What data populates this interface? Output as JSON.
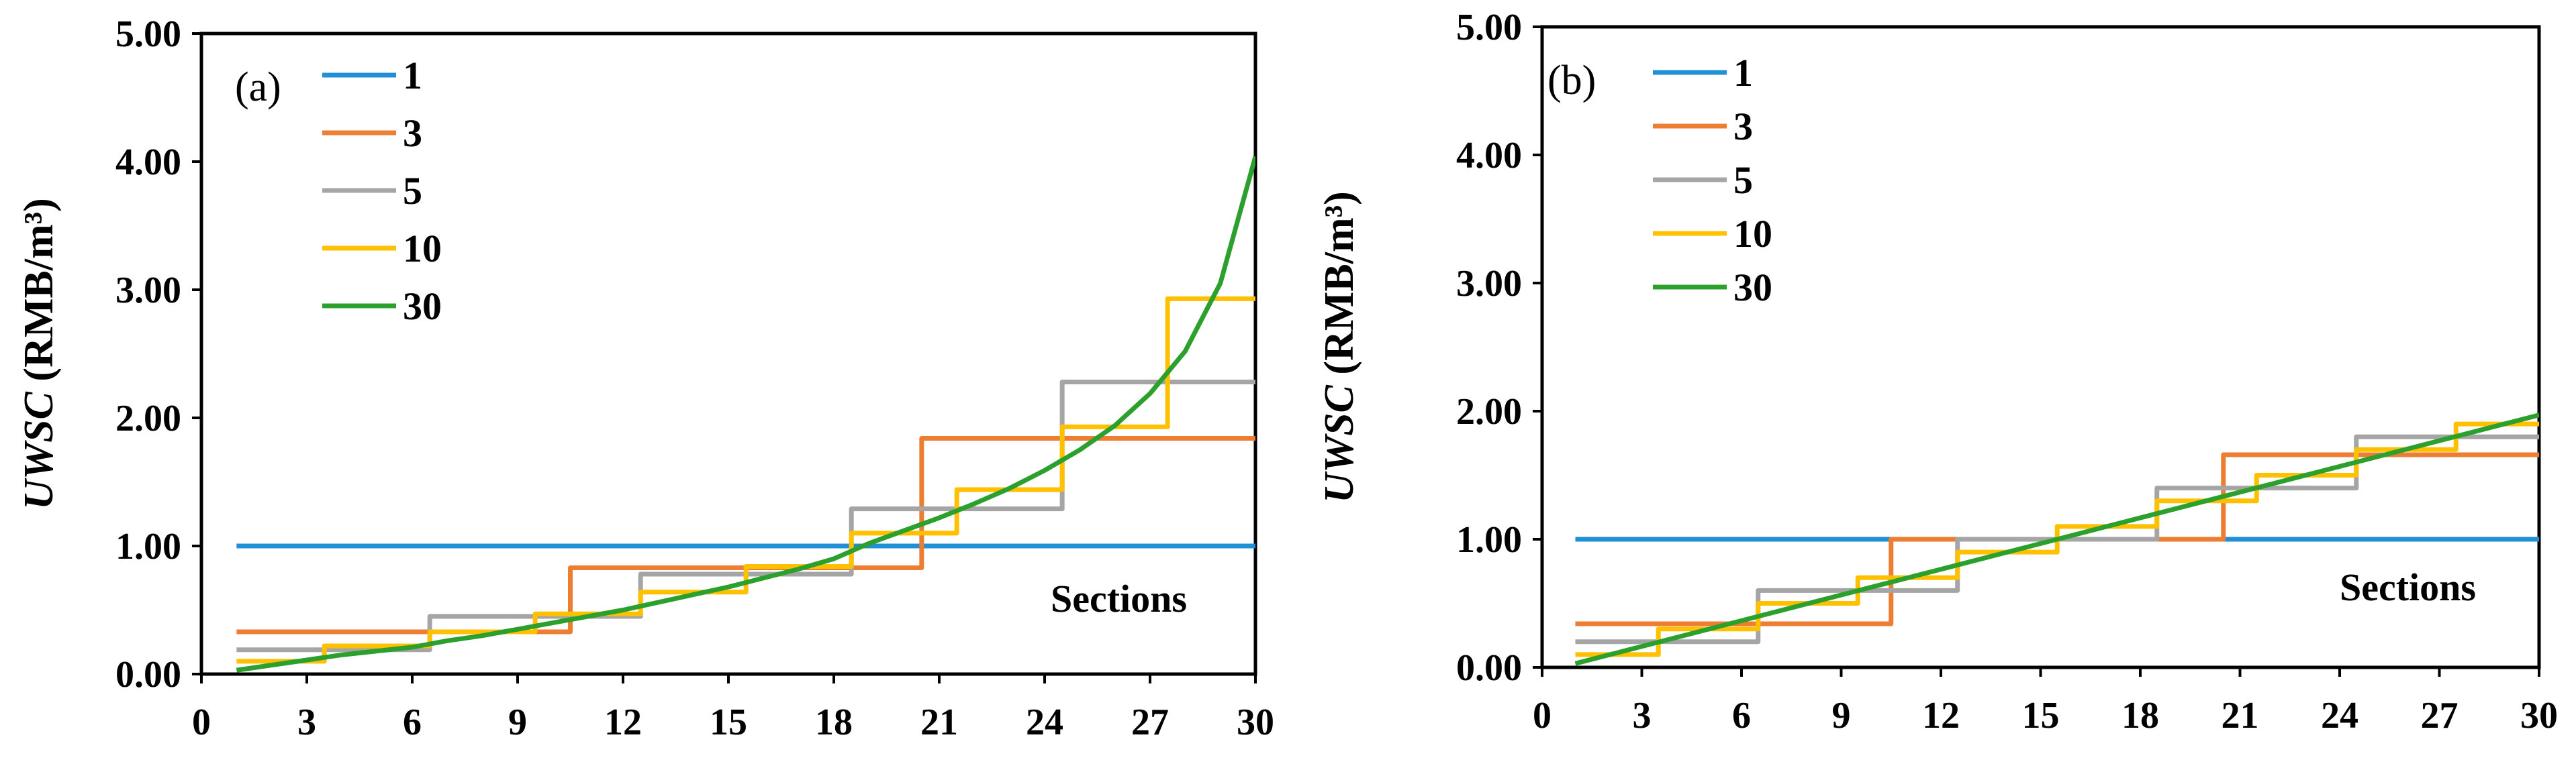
{
  "chart_data": [
    {
      "type": "line",
      "panel_label": "(a)",
      "ylabel_italic": "UWSC",
      "ylabel_unit": " (RMB/m³)",
      "xlabel": "",
      "annotation": "Sections",
      "xlim": [
        0,
        30
      ],
      "ylim": [
        0,
        5
      ],
      "xticks": [
        "0",
        "3",
        "6",
        "9",
        "12",
        "15",
        "18",
        "21",
        "24",
        "27",
        "30"
      ],
      "yticks": [
        "0.00",
        "1.00",
        "2.00",
        "3.00",
        "4.00",
        "5.00"
      ],
      "series": [
        {
          "name": "1",
          "color": "#1f8fd6",
          "step": false,
          "x": [
            1,
            30
          ],
          "y": [
            1.0,
            1.0
          ]
        },
        {
          "name": "3",
          "color": "#ed7d31",
          "step": true,
          "segments": [
            [
              1,
              10.5,
              0.33
            ],
            [
              10.5,
              20.5,
              0.83
            ],
            [
              20.5,
              30,
              1.84
            ]
          ]
        },
        {
          "name": "5",
          "color": "#a5a5a5",
          "step": true,
          "segments": [
            [
              1,
              6.5,
              0.19
            ],
            [
              6.5,
              12.5,
              0.45
            ],
            [
              12.5,
              18.5,
              0.78
            ],
            [
              18.5,
              24.5,
              1.29
            ],
            [
              24.5,
              30,
              2.28
            ]
          ]
        },
        {
          "name": "10",
          "color": "#ffc000",
          "step": true,
          "segments": [
            [
              1,
              3.5,
              0.1
            ],
            [
              3.5,
              6.5,
              0.22
            ],
            [
              6.5,
              9.5,
              0.33
            ],
            [
              9.5,
              12.5,
              0.47
            ],
            [
              12.5,
              15.5,
              0.64
            ],
            [
              15.5,
              18.5,
              0.84
            ],
            [
              18.5,
              21.5,
              1.1
            ],
            [
              21.5,
              24.5,
              1.44
            ],
            [
              24.5,
              27.5,
              1.93
            ],
            [
              27.5,
              30,
              2.93
            ]
          ]
        },
        {
          "name": "30",
          "color": "#2ca02c",
          "step": false,
          "x": [
            1,
            2,
            3,
            4,
            5,
            6,
            7,
            8,
            9,
            10,
            11,
            12,
            13,
            14,
            15,
            16,
            17,
            18,
            19,
            20,
            21,
            22,
            23,
            24,
            25,
            26,
            27,
            28,
            29,
            30
          ],
          "y": [
            0.03,
            0.07,
            0.11,
            0.15,
            0.18,
            0.21,
            0.26,
            0.3,
            0.35,
            0.4,
            0.45,
            0.5,
            0.56,
            0.62,
            0.68,
            0.75,
            0.82,
            0.9,
            1.02,
            1.12,
            1.22,
            1.33,
            1.45,
            1.59,
            1.75,
            1.94,
            2.19,
            2.52,
            3.05,
            4.04
          ]
        }
      ]
    },
    {
      "type": "line",
      "panel_label": "(b)",
      "ylabel_italic": "UWSC",
      "ylabel_unit": " (RMB/m³)",
      "xlabel": "",
      "annotation": "Sections",
      "xlim": [
        0,
        30
      ],
      "ylim": [
        0,
        5
      ],
      "xticks": [
        "0",
        "3",
        "6",
        "9",
        "12",
        "15",
        "18",
        "21",
        "24",
        "27",
        "30"
      ],
      "yticks": [
        "0.00",
        "1.00",
        "2.00",
        "3.00",
        "4.00",
        "5.00"
      ],
      "series": [
        {
          "name": "1",
          "color": "#1f8fd6",
          "step": false,
          "x": [
            1,
            30
          ],
          "y": [
            1.0,
            1.0
          ]
        },
        {
          "name": "3",
          "color": "#ed7d31",
          "step": true,
          "segments": [
            [
              1,
              10.5,
              0.34
            ],
            [
              10.5,
              20.5,
              1.0
            ],
            [
              20.5,
              30,
              1.66
            ]
          ]
        },
        {
          "name": "5",
          "color": "#a5a5a5",
          "step": true,
          "segments": [
            [
              1,
              6.5,
              0.2
            ],
            [
              6.5,
              12.5,
              0.6
            ],
            [
              12.5,
              18.5,
              1.0
            ],
            [
              18.5,
              24.5,
              1.4
            ],
            [
              24.5,
              30,
              1.8
            ]
          ]
        },
        {
          "name": "10",
          "color": "#ffc000",
          "step": true,
          "segments": [
            [
              1,
              3.5,
              0.1
            ],
            [
              3.5,
              6.5,
              0.3
            ],
            [
              6.5,
              9.5,
              0.5
            ],
            [
              9.5,
              12.5,
              0.7
            ],
            [
              12.5,
              15.5,
              0.9
            ],
            [
              15.5,
              18.5,
              1.1
            ],
            [
              18.5,
              21.5,
              1.3
            ],
            [
              21.5,
              24.5,
              1.5
            ],
            [
              24.5,
              27.5,
              1.7
            ],
            [
              27.5,
              30,
              1.9
            ]
          ]
        },
        {
          "name": "30",
          "color": "#2ca02c",
          "step": false,
          "x": [
            1,
            30
          ],
          "y": [
            0.03,
            1.97
          ]
        }
      ]
    }
  ]
}
